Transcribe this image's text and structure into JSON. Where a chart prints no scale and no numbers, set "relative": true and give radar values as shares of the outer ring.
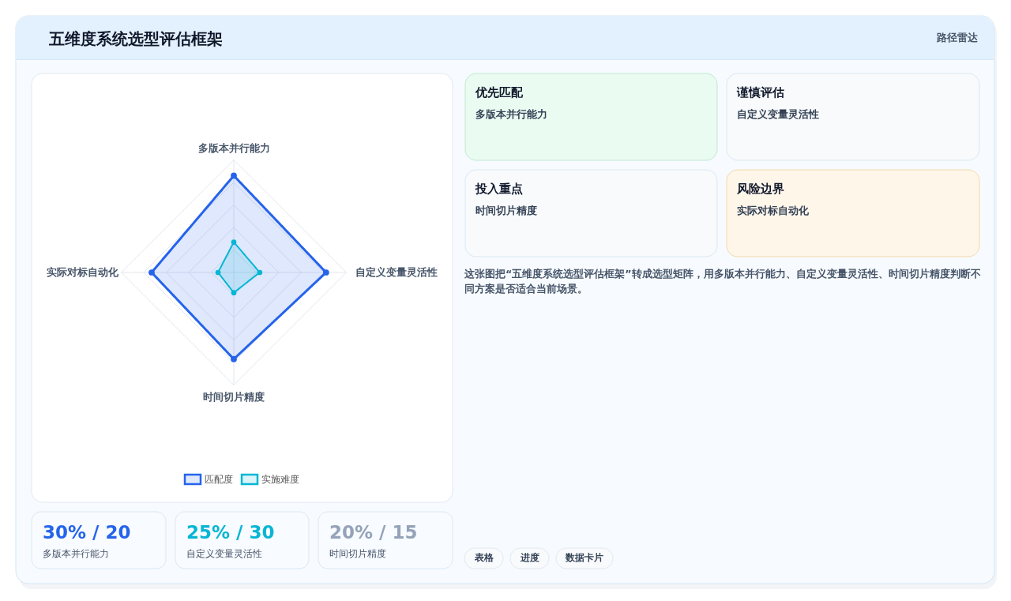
{
  "chart_data": {
    "type": "radar",
    "title": "五维度系统选型评估框架",
    "subtitle": "路径雷达",
    "categories": [
      "多版本并行能力",
      "自定义变量灵活性",
      "时间切片精度",
      "实际对标自动化"
    ],
    "series": [
      {
        "name": "匹配度",
        "color": "#2563eb",
        "values": [
          0.86,
          0.82,
          0.77,
          0.73
        ]
      },
      {
        "name": "实施难度",
        "color": "#06b6d4",
        "values": [
          0.27,
          0.23,
          0.18,
          0.14
        ]
      }
    ],
    "relative": true,
    "grid": true,
    "legend": "bottom",
    "marker": "circle",
    "line_style": "solid",
    "annotations": [
      "30% / 20",
      "多版本并行能力",
      "25% / 30",
      "自定义变量灵活性",
      "20% / 15",
      "时间切片精度",
      "优先匹配",
      "多版本并行能力",
      "谨慎评估",
      "自定义变量灵活性",
      "投入重点",
      "时间切片精度",
      "风险边界",
      "实际对标自动化",
      "这张图把“五维度系统选型评估框架”转成选型矩阵，用多版本并行能力、自定义变量灵活性、时间切片精度判断不同方案是否适合当前场景。",
      "表格",
      "进度",
      "数据卡片"
    ]
  }
}
